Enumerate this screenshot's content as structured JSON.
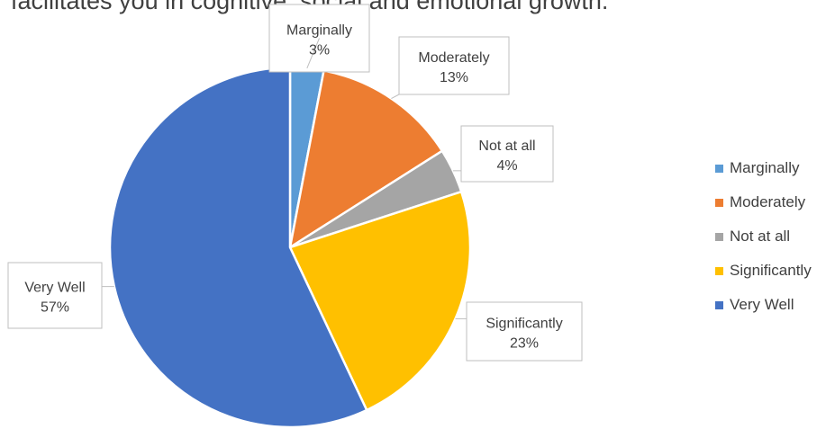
{
  "chart_data": {
    "type": "pie",
    "title": "facilitates you in cognitive, social and emotional growth.",
    "categories": [
      "Marginally",
      "Moderately",
      "Not at all",
      "Significantly",
      "Very Well"
    ],
    "values": [
      3,
      13,
      4,
      23,
      57
    ],
    "value_labels": [
      "3%",
      "13%",
      "4%",
      "23%",
      "57%"
    ],
    "colors": [
      "#5B9BD5",
      "#ED7D31",
      "#A5A5A5",
      "#FFC000",
      "#4472C4"
    ],
    "legend": {
      "position": "right",
      "entries": [
        "Marginally",
        "Moderately",
        "Not at all",
        "Significantly",
        "Very Well"
      ]
    }
  }
}
